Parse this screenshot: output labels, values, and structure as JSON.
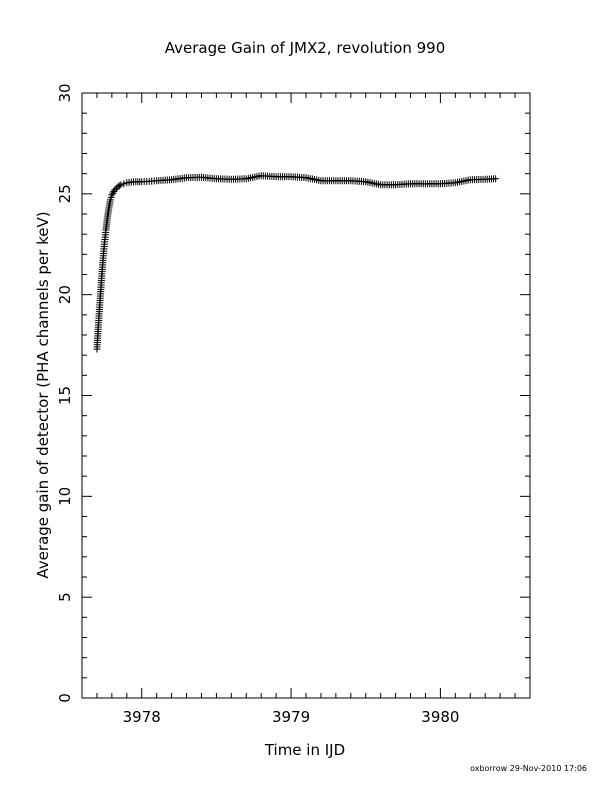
{
  "chart_data": {
    "type": "scatter",
    "title": "Average Gain of JMX2, revolution 990",
    "xlabel": "Time in IJD",
    "ylabel": "Average gain of detector (PHA channels per keV)",
    "xlim": [
      3977.6,
      3980.6
    ],
    "ylim": [
      0,
      30
    ],
    "x_ticks": [
      "3978",
      "3979",
      "3980"
    ],
    "y_ticks": [
      "0",
      "5",
      "10",
      "15",
      "20",
      "25",
      "30"
    ],
    "marker": "plus",
    "grid": false,
    "series": [
      {
        "x": [
          3977.7,
          3977.71,
          3977.72,
          3977.73,
          3977.74,
          3977.75,
          3977.76,
          3977.77,
          3977.78,
          3977.79,
          3977.8,
          3977.82,
          3977.84,
          3977.86,
          3977.88,
          3977.9,
          3977.93,
          3977.96,
          3978.0,
          3978.05,
          3978.1,
          3978.2,
          3978.3,
          3978.4,
          3978.5,
          3978.6,
          3978.7,
          3978.8,
          3978.9,
          3979.0,
          3979.1,
          3979.2,
          3979.3,
          3979.4,
          3979.5,
          3979.6,
          3979.7,
          3979.8,
          3979.9,
          3980.0,
          3980.1,
          3980.2,
          3980.3,
          3980.37
        ],
        "y": [
          17.3,
          18.5,
          19.6,
          20.7,
          21.7,
          22.5,
          23.2,
          23.8,
          24.3,
          24.7,
          24.95,
          25.2,
          25.35,
          25.45,
          25.5,
          25.55,
          25.58,
          25.6,
          25.6,
          25.62,
          25.65,
          25.7,
          25.8,
          25.82,
          25.75,
          25.72,
          25.75,
          25.9,
          25.85,
          25.85,
          25.8,
          25.65,
          25.65,
          25.65,
          25.6,
          25.45,
          25.45,
          25.5,
          25.5,
          25.5,
          25.55,
          25.7,
          25.72,
          25.75
        ]
      }
    ]
  },
  "footer": "oxborrow 29-Nov-2010 17:06"
}
